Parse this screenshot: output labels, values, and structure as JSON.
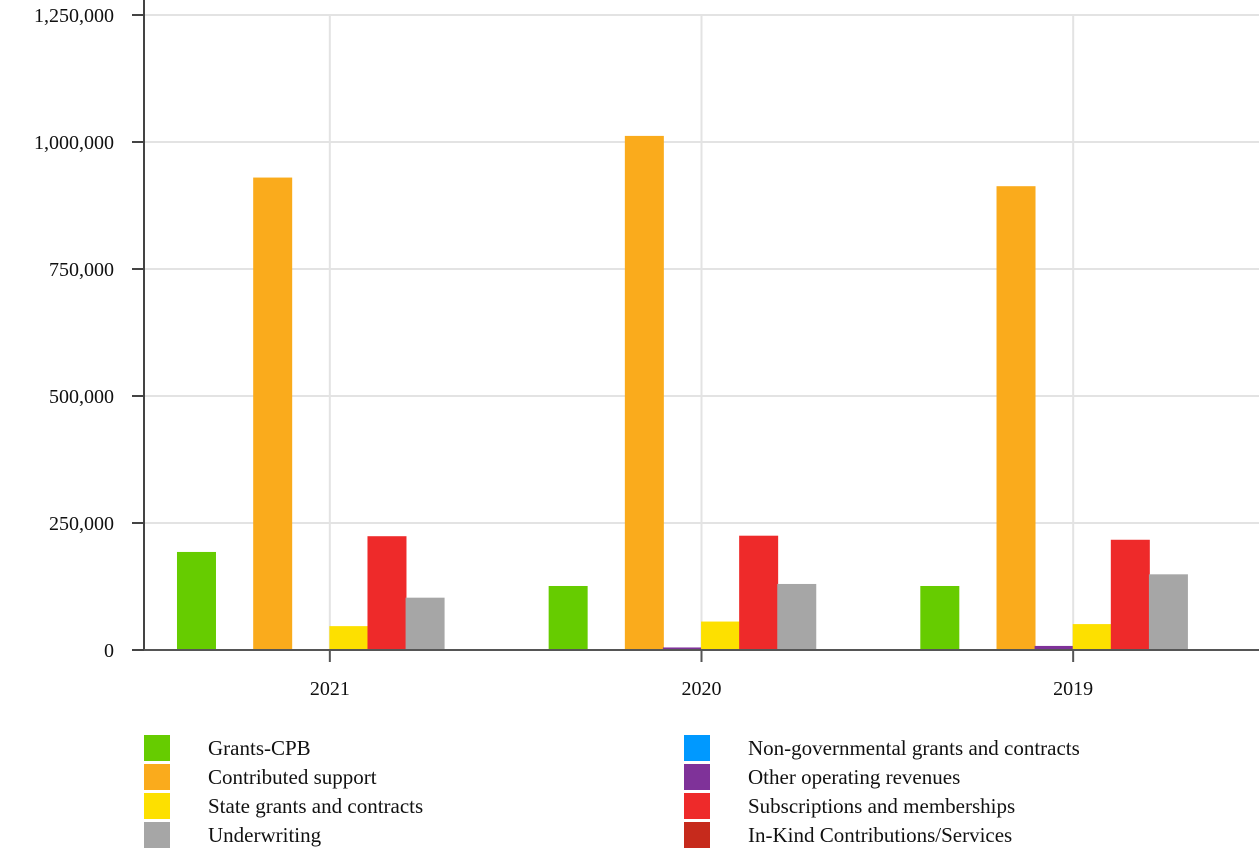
{
  "chart_data": {
    "type": "bar",
    "categories": [
      "2021",
      "2020",
      "2019"
    ],
    "ylim": [
      0,
      1250000
    ],
    "yticks": [
      {
        "value": 0,
        "label": "0"
      },
      {
        "value": 250000,
        "label": "250,000"
      },
      {
        "value": 500000,
        "label": "500,000"
      },
      {
        "value": 750000,
        "label": "750,000"
      },
      {
        "value": 1000000,
        "label": "1,000,000"
      },
      {
        "value": 1250000,
        "label": "1,250,000"
      }
    ],
    "grid": true,
    "legend_position": "bottom",
    "series": [
      {
        "name": "Grants-CPB",
        "color": "#66cc00",
        "values": [
          193000,
          126000,
          126000
        ]
      },
      {
        "name": "Non-governmental grants and contracts",
        "color": "#0099ff",
        "values": [
          0,
          0,
          0
        ]
      },
      {
        "name": "Contributed support",
        "color": "#faab1c",
        "values": [
          930000,
          1012000,
          913000
        ]
      },
      {
        "name": "Other operating revenues",
        "color": "#7f3299",
        "values": [
          0,
          5000,
          8000
        ]
      },
      {
        "name": "State grants and contracts",
        "color": "#fde000",
        "values": [
          47000,
          56000,
          51000
        ]
      },
      {
        "name": "Subscriptions and memberships",
        "color": "#ee2a2a",
        "values": [
          224000,
          225000,
          217000
        ]
      },
      {
        "name": "Underwriting",
        "color": "#a6a6a6",
        "values": [
          103000,
          130000,
          149000
        ]
      },
      {
        "name": "In-Kind Contributions/Services",
        "color": "#c62a1c",
        "values": [
          0,
          0,
          0
        ]
      }
    ]
  }
}
